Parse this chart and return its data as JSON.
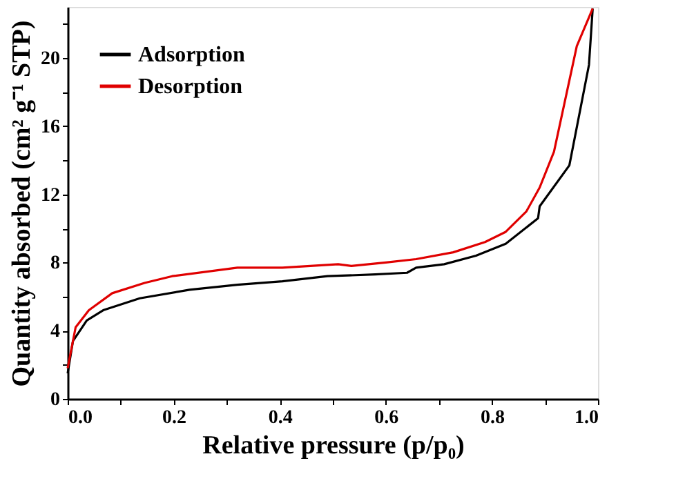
{
  "chart_data": {
    "type": "line",
    "xlabel": "Relative pressure (p/p₀)",
    "ylabel": "Quantity absorbed (cm² g⁻¹ STP)",
    "xlim": [
      0,
      1.0
    ],
    "ylim": [
      0,
      23
    ],
    "xticks": [
      {
        "value": 0,
        "label": "0.0"
      },
      {
        "value": 0.1,
        "label": null
      },
      {
        "value": 0.2,
        "label": "0.2"
      },
      {
        "value": 0.3,
        "label": null
      },
      {
        "value": 0.4,
        "label": "0.4"
      },
      {
        "value": 0.5,
        "label": null
      },
      {
        "value": 0.6,
        "label": "0.6"
      },
      {
        "value": 0.7,
        "label": null
      },
      {
        "value": 0.8,
        "label": "0.8"
      },
      {
        "value": 0.9,
        "label": null
      },
      {
        "value": 1.0,
        "label": "1.0"
      }
    ],
    "yticks": [
      0,
      {
        "value": 2,
        "label": null
      },
      4,
      {
        "value": 6,
        "label": null
      },
      8,
      {
        "value": 10,
        "label": null
      },
      12,
      {
        "value": 14,
        "label": null
      },
      16,
      {
        "value": 18,
        "label": null
      },
      20,
      {
        "value": 22,
        "label": null
      }
    ],
    "grid": false,
    "legend": "top left",
    "marker": "none",
    "line_style": "solid",
    "series": [
      {
        "name": "Adsorption",
        "color": "#000000",
        "x": [
          0.0,
          0.01,
          0.036,
          0.067,
          0.136,
          0.23,
          0.32,
          0.405,
          0.49,
          0.58,
          0.64,
          0.657,
          0.71,
          0.77,
          0.826,
          0.887,
          0.89,
          0.946,
          0.983,
          0.99
        ],
        "values": [
          1.5,
          3.4,
          4.6,
          5.2,
          5.9,
          6.4,
          6.7,
          6.9,
          7.2,
          7.3,
          7.4,
          7.7,
          7.9,
          8.4,
          9.1,
          10.6,
          11.3,
          13.7,
          19.6,
          22.9
        ]
      },
      {
        "name": "Desorption",
        "color": "#e00000",
        "x": [
          0.0,
          0.015,
          0.04,
          0.084,
          0.145,
          0.197,
          0.32,
          0.405,
          0.51,
          0.535,
          0.6,
          0.657,
          0.727,
          0.787,
          0.826,
          0.865,
          0.89,
          0.917,
          0.96,
          0.99
        ],
        "values": [
          1.8,
          4.2,
          5.2,
          6.2,
          6.8,
          7.2,
          7.7,
          7.7,
          7.9,
          7.8,
          8.0,
          8.2,
          8.6,
          9.2,
          9.8,
          11.0,
          12.4,
          14.5,
          20.7,
          22.9
        ]
      }
    ]
  }
}
